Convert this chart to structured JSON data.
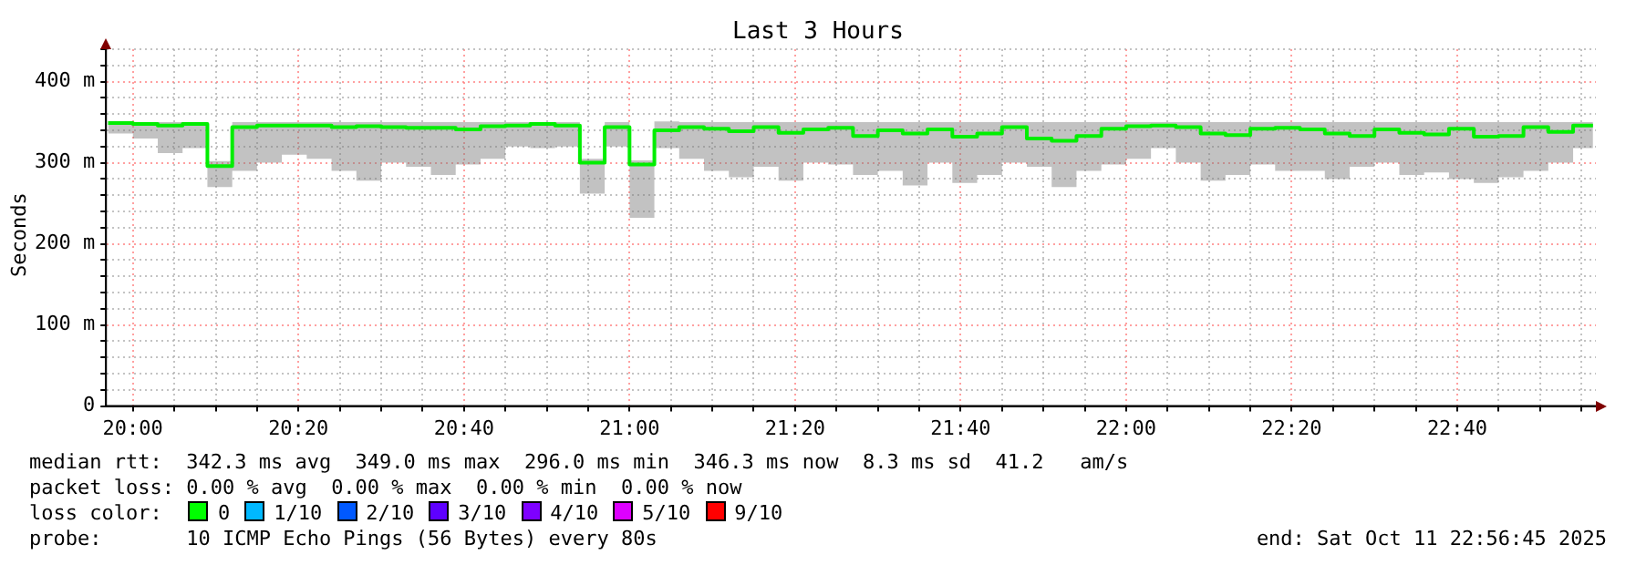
{
  "chart_data": {
    "type": "step",
    "title": "Last 3 Hours",
    "ylabel": "Seconds",
    "x": [
      19.95,
      20.0,
      20.05,
      20.1,
      20.15,
      20.2,
      20.25,
      20.3,
      20.35,
      20.4,
      20.45,
      20.5,
      20.55,
      20.6,
      20.65,
      20.7,
      20.75,
      20.8,
      20.85,
      20.9,
      20.95,
      21.0,
      21.05,
      21.1,
      21.15,
      21.2,
      21.25,
      21.3,
      21.35,
      21.4,
      21.45,
      21.5,
      21.55,
      21.6,
      21.65,
      21.7,
      21.75,
      21.8,
      21.85,
      21.9,
      21.95,
      22.0,
      22.05,
      22.1,
      22.15,
      22.2,
      22.25,
      22.3,
      22.35,
      22.4,
      22.45,
      22.5,
      22.55,
      22.6,
      22.65,
      22.7,
      22.75,
      22.8,
      22.85,
      22.9,
      22.94
    ],
    "series": [
      {
        "color": "#00ee00",
        "values": [
          349,
          348,
          346,
          348,
          296,
          344,
          346,
          346,
          346,
          344,
          345,
          344,
          343,
          343,
          341,
          345,
          346,
          348,
          346,
          300,
          344,
          298,
          340,
          344,
          342,
          339,
          344,
          337,
          341,
          343,
          333,
          340,
          336,
          341,
          332,
          336,
          344,
          330,
          327,
          333,
          342,
          345,
          346,
          344,
          336,
          334,
          342,
          343,
          341,
          336,
          333,
          341,
          337,
          335,
          342,
          332,
          333,
          344,
          338,
          346,
          346
        ],
        "lower": [
          336,
          330,
          312,
          318,
          270,
          290,
          300,
          310,
          305,
          290,
          278,
          300,
          295,
          285,
          298,
          305,
          320,
          318,
          320,
          262,
          320,
          232,
          318,
          305,
          290,
          282,
          295,
          278,
          300,
          298,
          285,
          290,
          272,
          300,
          275,
          285,
          300,
          295,
          270,
          290,
          298,
          305,
          318,
          300,
          278,
          285,
          298,
          290,
          290,
          280,
          295,
          300,
          285,
          288,
          280,
          275,
          282,
          290,
          300,
          318,
          330
        ],
        "upper": [
          351,
          350,
          350,
          350,
          302,
          350,
          350,
          350,
          350,
          350,
          350,
          350,
          350,
          350,
          350,
          350,
          350,
          350,
          350,
          305,
          350,
          303,
          351,
          350,
          350,
          350,
          350,
          350,
          350,
          350,
          350,
          350,
          350,
          350,
          350,
          350,
          350,
          350,
          350,
          350,
          350,
          350,
          350,
          350,
          350,
          350,
          350,
          350,
          350,
          350,
          350,
          350,
          350,
          350,
          350,
          350,
          350,
          350,
          350,
          350,
          350
        ]
      }
    ],
    "xlim": [
      19.9458,
      22.9458
    ],
    "xticks": [
      {
        "value": 20,
        "label": "20:00"
      },
      {
        "value": 20.0833,
        "label": null
      },
      {
        "value": 20.1667,
        "label": null
      },
      {
        "value": 20.25,
        "label": null
      },
      {
        "value": 20.3333,
        "label": "20:20"
      },
      {
        "value": 20.4167,
        "label": null
      },
      {
        "value": 20.5,
        "label": null
      },
      {
        "value": 20.5833,
        "label": null
      },
      {
        "value": 20.6667,
        "label": "20:40"
      },
      {
        "value": 20.75,
        "label": null
      },
      {
        "value": 20.8333,
        "label": null
      },
      {
        "value": 20.9167,
        "label": null
      },
      {
        "value": 21,
        "label": "21:00"
      },
      {
        "value": 21.0833,
        "label": null
      },
      {
        "value": 21.1667,
        "label": null
      },
      {
        "value": 21.25,
        "label": null
      },
      {
        "value": 21.3333,
        "label": "21:20"
      },
      {
        "value": 21.4167,
        "label": null
      },
      {
        "value": 21.5,
        "label": null
      },
      {
        "value": 21.5833,
        "label": null
      },
      {
        "value": 21.6667,
        "label": "21:40"
      },
      {
        "value": 21.75,
        "label": null
      },
      {
        "value": 21.8333,
        "label": null
      },
      {
        "value": 21.9167,
        "label": null
      },
      {
        "value": 22,
        "label": "22:00"
      },
      {
        "value": 22.0833,
        "label": null
      },
      {
        "value": 22.1667,
        "label": null
      },
      {
        "value": 22.25,
        "label": null
      },
      {
        "value": 22.3333,
        "label": "22:20"
      },
      {
        "value": 22.4167,
        "label": null
      },
      {
        "value": 22.5,
        "label": null
      },
      {
        "value": 22.5833,
        "label": null
      },
      {
        "value": 22.6667,
        "label": "22:40"
      },
      {
        "value": 22.75,
        "label": null
      },
      {
        "value": 22.8333,
        "label": null
      },
      {
        "value": 22.9167,
        "label": null
      }
    ],
    "ylim": [
      0,
      440
    ],
    "yticks": [
      0,
      {
        "value": 20,
        "label": null
      },
      {
        "value": 40,
        "label": null
      },
      {
        "value": 60,
        "label": null
      },
      {
        "value": 80,
        "label": null
      },
      {
        "value": 100,
        "label": "100 m"
      },
      {
        "value": 120,
        "label": null
      },
      {
        "value": 140,
        "label": null
      },
      {
        "value": 160,
        "label": null
      },
      {
        "value": 180,
        "label": null
      },
      {
        "value": 200,
        "label": "200 m"
      },
      {
        "value": 220,
        "label": null
      },
      {
        "value": 240,
        "label": null
      },
      {
        "value": 260,
        "label": null
      },
      {
        "value": 280,
        "label": null
      },
      {
        "value": 300,
        "label": "300 m"
      },
      {
        "value": 320,
        "label": null
      },
      {
        "value": 340,
        "label": null
      },
      {
        "value": 360,
        "label": null
      },
      {
        "value": 380,
        "label": null
      },
      {
        "value": 400,
        "label": "400 m"
      },
      {
        "value": 420,
        "label": null
      },
      {
        "value": 440,
        "label": null
      }
    ],
    "grid": true,
    "annotations": [
      "median rtt:  342.3 ms avg  349.0 ms max  296.0 ms min  346.3 ms now  8.3 ms sd  41.2   am/s",
      "packet loss: 0.00 % avg  0.00 % max  0.00 % min  0.00 % now",
      "loss color:",
      "0",
      "1/10",
      "2/10",
      "3/10",
      "4/10",
      "5/10",
      "9/10",
      "probe:       10 ICMP Echo Pings (56 Bytes) every 80s",
      "end: Sat Oct 11 22:56:45 2025"
    ]
  }
}
